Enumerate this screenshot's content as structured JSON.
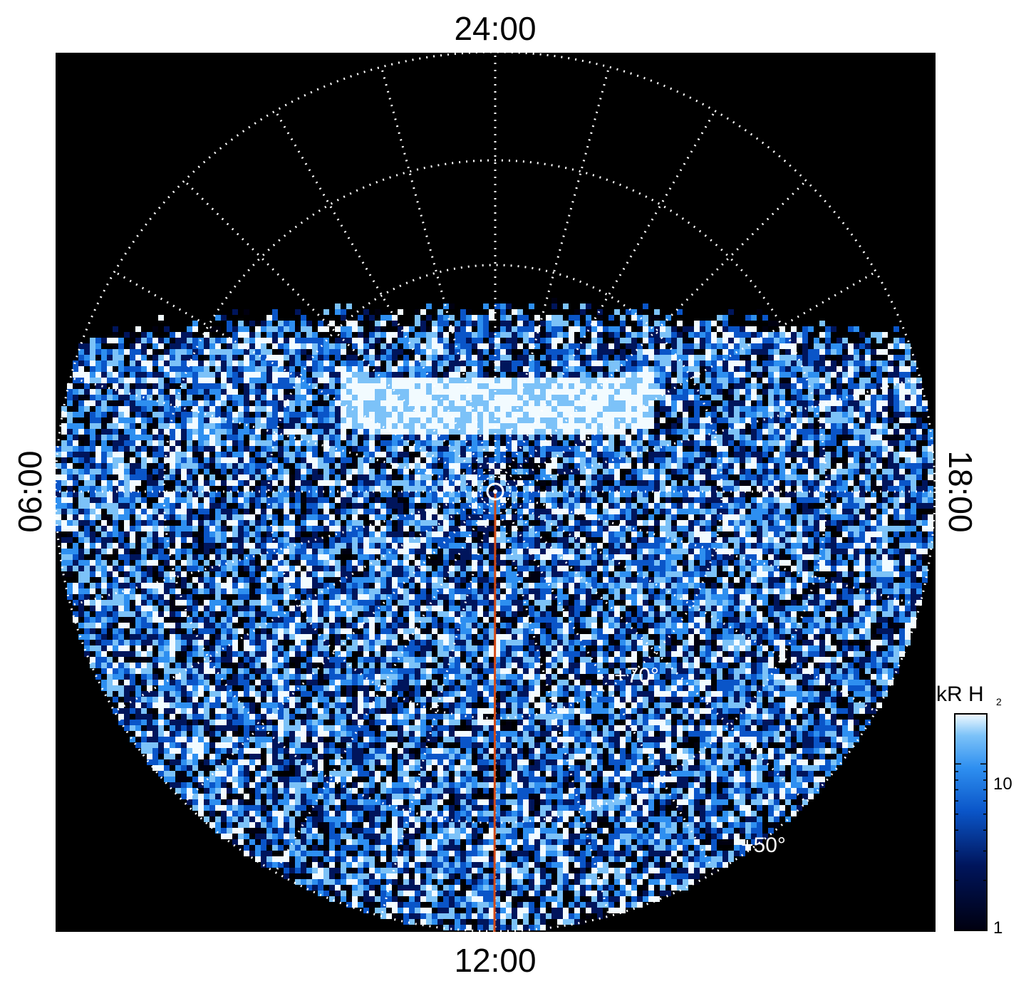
{
  "chart_data": {
    "type": "heatmap",
    "projection": "polar (north-pole up view)",
    "local_time_labels": {
      "top": "24:00",
      "bottom": "12:00",
      "left": "06:00",
      "right": "18:00"
    },
    "latitude_labels": [
      "+70°",
      "+50°"
    ],
    "grid": true,
    "scale": "log",
    "colorbar": {
      "title_main": "kR H",
      "title_sub": "2",
      "range": [
        1,
        20
      ],
      "tick_labels": [
        "1",
        "10"
      ],
      "tick_values": [
        1,
        10
      ],
      "colors": [
        "#000010",
        "#00155c",
        "#0a55c8",
        "#2e8ff0",
        "#7cc2f8",
        "#f2fbff"
      ]
    },
    "features": {
      "auroral_oval_band": "bright emission arc centered near 24:00 local time",
      "meridian_line_color": "#d24a17",
      "meridian_line": "from pole to 12:00"
    },
    "colors": {
      "background": "#000000",
      "grid": "#ffffff",
      "text": "#000000"
    }
  }
}
